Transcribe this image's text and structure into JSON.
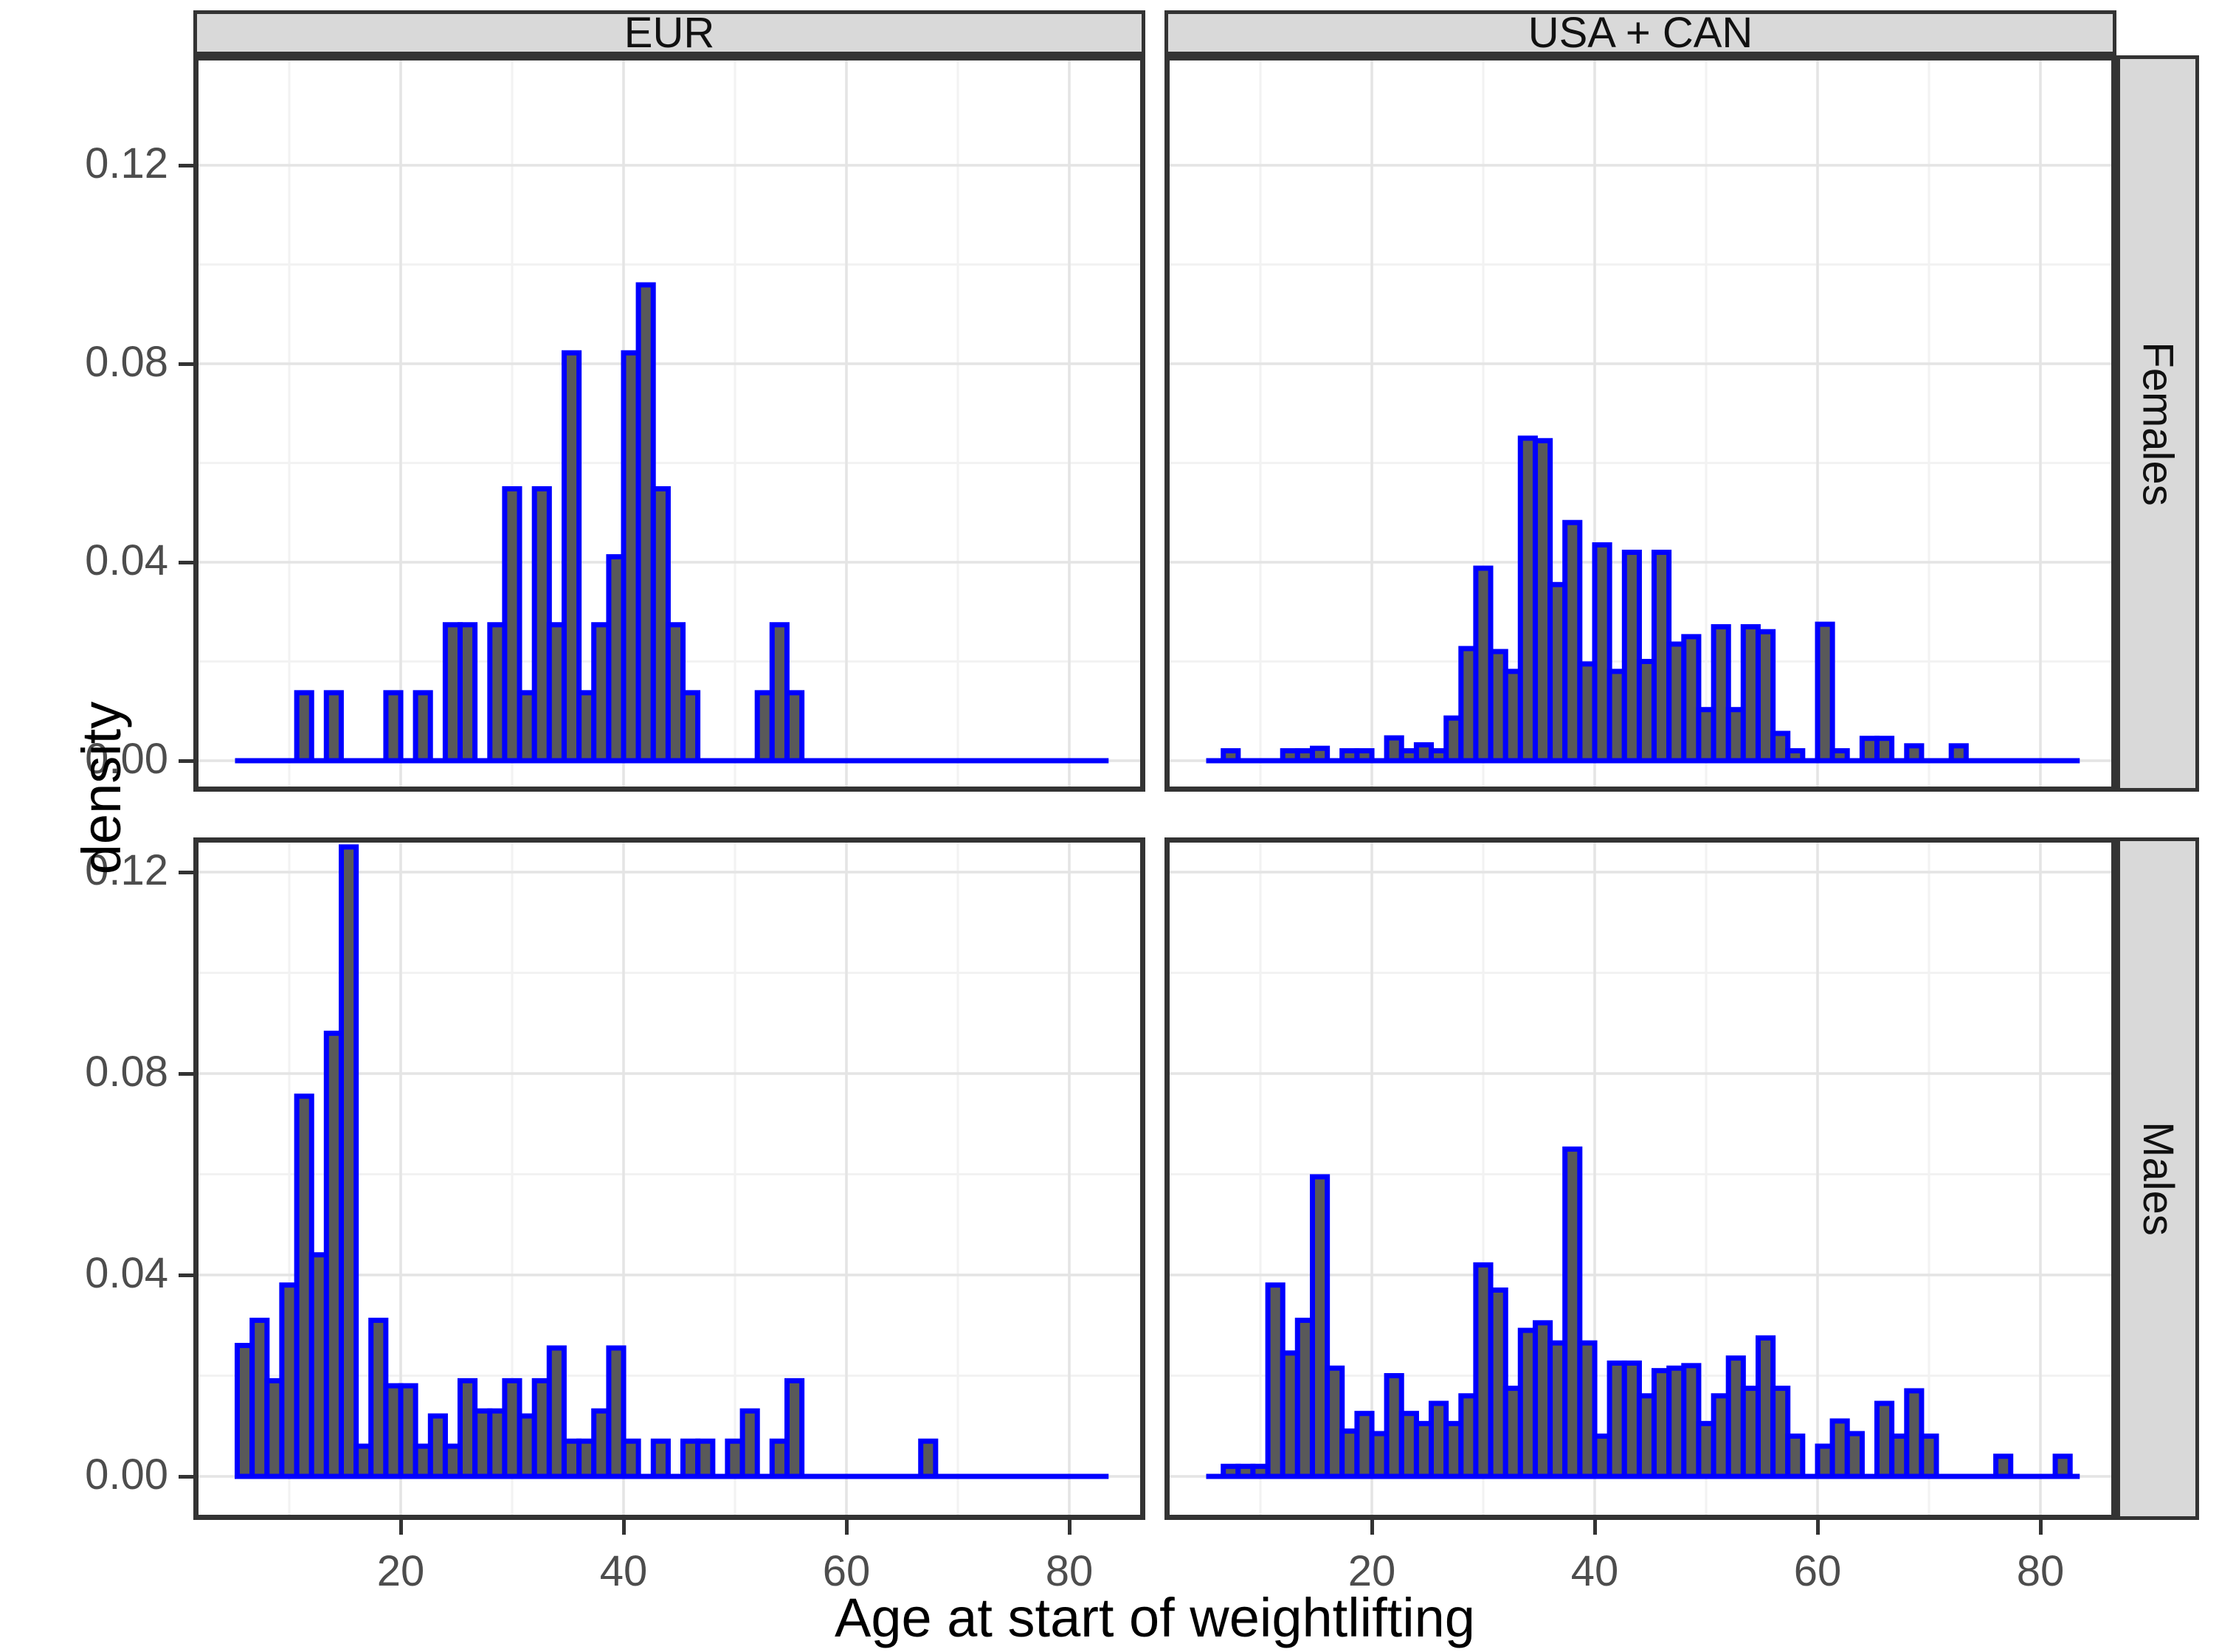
{
  "chart_data": {
    "type": "bar",
    "subtype": "faceted-density-histogram",
    "title": "",
    "xlabel": "Age at start of weightlifting",
    "ylabel": "density",
    "col_facets": [
      "EUR",
      "USA + CAN"
    ],
    "row_facets": [
      "Females",
      "Males"
    ],
    "x_ticks": [
      20,
      40,
      60,
      80
    ],
    "x_tick_labels": [
      "20",
      "40",
      "60",
      "80"
    ],
    "y_ticks": [
      0,
      0.04,
      0.08,
      0.12
    ],
    "y_tick_labels": [
      "0.00",
      "0.04",
      "0.08",
      "0.12"
    ],
    "x_minor": [
      10,
      30,
      50,
      70
    ],
    "y_minor": [
      0.02,
      0.06,
      0.1
    ],
    "xlim": [
      0.3,
      86.7
    ],
    "ylim": [
      -0.006,
      0.1385
    ],
    "binwidth": 1.3333,
    "baseline_range": [
      5.33,
      83.33
    ],
    "grid": "on",
    "legend": "none",
    "facets": [
      {
        "col": "EUR",
        "row": "Females",
        "bins": [
          [
            10.67,
            0.0137
          ],
          [
            13.33,
            0.0137
          ],
          [
            18.67,
            0.0137
          ],
          [
            21.33,
            0.0137
          ],
          [
            24,
            0.0274
          ],
          [
            25.33,
            0.0274
          ],
          [
            28,
            0.0274
          ],
          [
            29.33,
            0.0548
          ],
          [
            30.67,
            0.0137
          ],
          [
            32,
            0.0548
          ],
          [
            33.33,
            0.0274
          ],
          [
            34.67,
            0.0822
          ],
          [
            36,
            0.0137
          ],
          [
            37.33,
            0.0274
          ],
          [
            38.67,
            0.0411
          ],
          [
            40,
            0.0822
          ],
          [
            41.33,
            0.0959
          ],
          [
            42.67,
            0.0548
          ],
          [
            44,
            0.0274
          ],
          [
            45.33,
            0.0137
          ],
          [
            52,
            0.0137
          ],
          [
            53.33,
            0.0274
          ],
          [
            54.67,
            0.0137
          ]
        ]
      },
      {
        "col": "USA + CAN",
        "row": "Females",
        "bins": [
          [
            6.67,
            0.002
          ],
          [
            12,
            0.002
          ],
          [
            13.33,
            0.002
          ],
          [
            14.67,
            0.0025
          ],
          [
            17.33,
            0.002
          ],
          [
            18.67,
            0.002
          ],
          [
            21.33,
            0.0046
          ],
          [
            22.67,
            0.002
          ],
          [
            24,
            0.0032
          ],
          [
            25.33,
            0.002
          ],
          [
            26.67,
            0.0086
          ],
          [
            28,
            0.0226
          ],
          [
            29.33,
            0.0388
          ],
          [
            30.67,
            0.022
          ],
          [
            32,
            0.018
          ],
          [
            33.33,
            0.065
          ],
          [
            34.67,
            0.0645
          ],
          [
            36,
            0.0355
          ],
          [
            37.33,
            0.048
          ],
          [
            38.67,
            0.0195
          ],
          [
            40,
            0.0435
          ],
          [
            41.33,
            0.018
          ],
          [
            42.67,
            0.042
          ],
          [
            44,
            0.02
          ],
          [
            45.33,
            0.042
          ],
          [
            46.67,
            0.0235
          ],
          [
            48,
            0.025
          ],
          [
            49.33,
            0.0103
          ],
          [
            50.67,
            0.027
          ],
          [
            52,
            0.0103
          ],
          [
            53.33,
            0.027
          ],
          [
            54.67,
            0.026
          ],
          [
            56,
            0.0055
          ],
          [
            57.33,
            0.002
          ],
          [
            60,
            0.0275
          ],
          [
            61.33,
            0.002
          ],
          [
            64,
            0.0045
          ],
          [
            65.33,
            0.0045
          ],
          [
            68,
            0.003
          ],
          [
            72,
            0.003
          ]
        ]
      },
      {
        "col": "EUR",
        "row": "Males",
        "bins": [
          [
            5.33,
            0.026
          ],
          [
            6.67,
            0.031
          ],
          [
            8,
            0.019
          ],
          [
            9.33,
            0.038
          ],
          [
            10.67,
            0.0755
          ],
          [
            12,
            0.044
          ],
          [
            13.33,
            0.088
          ],
          [
            14.67,
            0.125
          ],
          [
            16,
            0.006
          ],
          [
            17.33,
            0.031
          ],
          [
            18.67,
            0.018
          ],
          [
            20,
            0.018
          ],
          [
            21.33,
            0.006
          ],
          [
            22.67,
            0.012
          ],
          [
            24,
            0.006
          ],
          [
            25.33,
            0.019
          ],
          [
            26.67,
            0.013
          ],
          [
            28,
            0.013
          ],
          [
            29.33,
            0.019
          ],
          [
            30.67,
            0.012
          ],
          [
            32,
            0.019
          ],
          [
            33.33,
            0.0255
          ],
          [
            34.67,
            0.007
          ],
          [
            36,
            0.007
          ],
          [
            37.33,
            0.013
          ],
          [
            38.67,
            0.0255
          ],
          [
            40,
            0.007
          ],
          [
            42.67,
            0.007
          ],
          [
            45.33,
            0.007
          ],
          [
            46.67,
            0.007
          ],
          [
            49.33,
            0.007
          ],
          [
            50.67,
            0.013
          ],
          [
            53.33,
            0.007
          ],
          [
            54.67,
            0.019
          ],
          [
            66.67,
            0.007
          ]
        ]
      },
      {
        "col": "USA + CAN",
        "row": "Males",
        "bins": [
          [
            6.67,
            0.002
          ],
          [
            8,
            0.002
          ],
          [
            9.33,
            0.002
          ],
          [
            10.67,
            0.038
          ],
          [
            12,
            0.0245
          ],
          [
            13.33,
            0.031
          ],
          [
            14.67,
            0.0595
          ],
          [
            16,
            0.0215
          ],
          [
            17.33,
            0.009
          ],
          [
            18.67,
            0.0125
          ],
          [
            20,
            0.0085
          ],
          [
            21.33,
            0.02
          ],
          [
            22.67,
            0.0125
          ],
          [
            24,
            0.0105
          ],
          [
            25.33,
            0.0145
          ],
          [
            26.67,
            0.0105
          ],
          [
            28,
            0.016
          ],
          [
            29.33,
            0.042
          ],
          [
            30.67,
            0.037
          ],
          [
            32,
            0.0175
          ],
          [
            33.33,
            0.029
          ],
          [
            34.67,
            0.0305
          ],
          [
            36,
            0.0265
          ],
          [
            37.33,
            0.065
          ],
          [
            38.67,
            0.0265
          ],
          [
            40,
            0.008
          ],
          [
            41.33,
            0.0225
          ],
          [
            42.67,
            0.0225
          ],
          [
            44,
            0.016
          ],
          [
            45.33,
            0.021
          ],
          [
            46.67,
            0.0215
          ],
          [
            48,
            0.022
          ],
          [
            49.33,
            0.0105
          ],
          [
            50.67,
            0.016
          ],
          [
            52,
            0.0235
          ],
          [
            53.33,
            0.0175
          ],
          [
            54.67,
            0.0275
          ],
          [
            56,
            0.0175
          ],
          [
            57.33,
            0.008
          ],
          [
            60,
            0.006
          ],
          [
            61.33,
            0.011
          ],
          [
            62.67,
            0.0085
          ],
          [
            65.33,
            0.0145
          ],
          [
            66.67,
            0.008
          ],
          [
            68,
            0.017
          ],
          [
            69.33,
            0.008
          ],
          [
            76,
            0.004
          ],
          [
            81.33,
            0.004
          ]
        ]
      }
    ],
    "colors": {
      "bar_fill": "#595959",
      "bar_stroke": "#0000ff",
      "strip_bg": "#d9d9d9",
      "panel_bg": "#ffffff",
      "panel_border": "#333333",
      "grid_major": "#e4e4e4",
      "grid_minor": "#f2f2f2",
      "tick_label": "#4d4d4d",
      "axis_text": "#000000"
    }
  }
}
